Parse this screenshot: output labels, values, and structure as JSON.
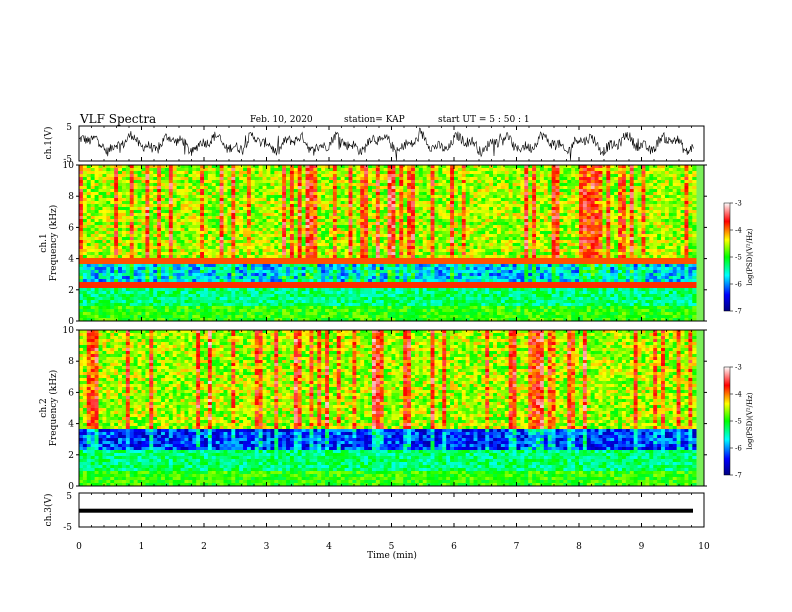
{
  "header": {
    "title": "VLF Spectra",
    "date": "Feb. 10, 2020",
    "station": "station= KAP",
    "start": "start  UT =  5 : 50 : 1"
  },
  "chart_data": [
    {
      "name": "ch1-waveform",
      "type": "line",
      "ylabel": "ch.1(V)",
      "ylim": [
        -5,
        5
      ],
      "yticks": [
        "5",
        "-5"
      ],
      "xlim": [
        0,
        10
      ],
      "trace_color": "#000000"
    },
    {
      "name": "ch1-spectrogram",
      "type": "heatmap",
      "ylabel_line1": "ch.1",
      "ylabel_line2": "Frequency (kHz)",
      "ylim": [
        0,
        10
      ],
      "yticks": [
        "0",
        "2",
        "4",
        "6",
        "8",
        "10"
      ],
      "xlim": [
        0,
        10
      ],
      "colorbar": {
        "label": "log(PSD)(V²/Hz)",
        "range": [
          -7,
          -3
        ],
        "ticks": [
          "-3",
          "-4",
          "-5",
          "-6",
          "-7"
        ],
        "colors": [
          "#000080",
          "#0000ff",
          "#00ffff",
          "#00ff00",
          "#ffff00",
          "#ff0000",
          "#ffffff"
        ]
      }
    },
    {
      "name": "ch2-spectrogram",
      "type": "heatmap",
      "ylabel_line1": "ch.2",
      "ylabel_line2": "Frequency (kHz)",
      "ylim": [
        0,
        10
      ],
      "yticks": [
        "0",
        "2",
        "4",
        "6",
        "8",
        "10"
      ],
      "xlim": [
        0,
        10
      ],
      "colorbar": {
        "label": "log(PSD)(V²/Hz)",
        "range": [
          -7,
          -3
        ],
        "ticks": [
          "-3",
          "-4",
          "-5",
          "-6",
          "-7"
        ],
        "colors": [
          "#000080",
          "#0000ff",
          "#00ffff",
          "#00ff00",
          "#ffff00",
          "#ff0000",
          "#ffffff"
        ]
      }
    },
    {
      "name": "ch3-waveform",
      "type": "line",
      "ylabel": "ch.3(V)",
      "ylim": [
        -5,
        5
      ],
      "yticks": [
        "5",
        "-5"
      ],
      "xlim": [
        0,
        10
      ],
      "level": -0.2,
      "trace_color": "#000000"
    }
  ],
  "xaxis": {
    "label": "Time (min)",
    "ticks": [
      "0",
      "1",
      "2",
      "3",
      "4",
      "5",
      "6",
      "7",
      "8",
      "9",
      "10"
    ]
  }
}
